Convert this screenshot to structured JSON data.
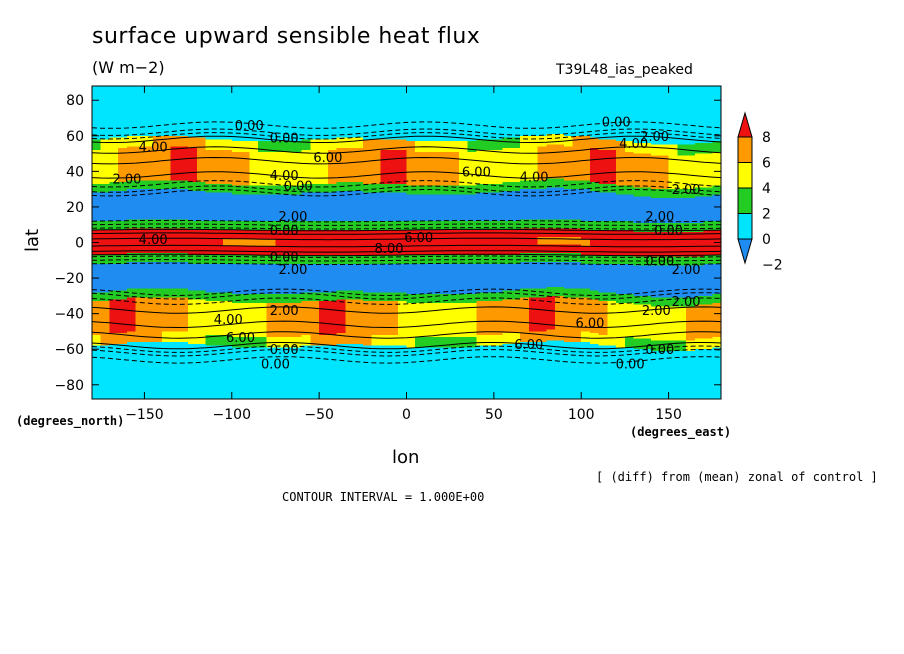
{
  "chart_data": {
    "type": "heatmap",
    "title": "surface upward sensible heat flux",
    "units": "(W m−2)",
    "experiment": "T39L48_ias_peaked",
    "xlabel": "lon",
    "ylabel": "lat",
    "x_unit_label": "(degrees_east)",
    "y_unit_label": "(degrees_north)",
    "xlim": [
      -180,
      180
    ],
    "ylim": [
      -88,
      88
    ],
    "x_ticks": [
      -150,
      -100,
      -50,
      0,
      50,
      100,
      150
    ],
    "x_tick_labels": [
      "−150",
      "−100",
      "−50",
      "0",
      "50",
      "100",
      "150"
    ],
    "y_ticks": [
      80,
      60,
      40,
      20,
      0,
      -20,
      -40,
      -60,
      -80
    ],
    "y_tick_labels": [
      "80",
      "60",
      "40",
      "20",
      "0",
      "−20",
      "−40",
      "−60",
      "−80"
    ],
    "colorbar": {
      "levels": [
        -2,
        0,
        2,
        4,
        6,
        8
      ],
      "tick_labels": [
        "−2",
        "0",
        "2",
        "4",
        "6",
        "8"
      ],
      "colors": [
        "#1e8cf0",
        "#00e5ff",
        "#22cc22",
        "#ffff00",
        "#ff9900",
        "#ee1111"
      ],
      "extend": "both"
    },
    "contour_labels": [
      {
        "text": "0.00",
        "lon": -90,
        "lat": 66
      },
      {
        "text": "0.00",
        "lon": -70,
        "lat": 59
      },
      {
        "text": "4.00",
        "lon": -145,
        "lat": 54
      },
      {
        "text": "6.00",
        "lon": -45,
        "lat": 48
      },
      {
        "text": "4.00",
        "lon": -70,
        "lat": 38
      },
      {
        "text": "2.00",
        "lon": -160,
        "lat": 36
      },
      {
        "text": "0.00",
        "lon": -62,
        "lat": 32
      },
      {
        "text": "6.00",
        "lon": 40,
        "lat": 40
      },
      {
        "text": "4.00",
        "lon": 73,
        "lat": 37
      },
      {
        "text": "0.00",
        "lon": 120,
        "lat": 68
      },
      {
        "text": "2.00",
        "lon": 142,
        "lat": 60
      },
      {
        "text": "4.00",
        "lon": 130,
        "lat": 56
      },
      {
        "text": "2.00",
        "lon": 160,
        "lat": 30
      },
      {
        "text": "2.00",
        "lon": -65,
        "lat": 15
      },
      {
        "text": "0.00",
        "lon": -70,
        "lat": 7
      },
      {
        "text": "4.00",
        "lon": -145,
        "lat": 2
      },
      {
        "text": "8.00",
        "lon": -10,
        "lat": -3
      },
      {
        "text": "6.00",
        "lon": 7,
        "lat": 3
      },
      {
        "text": "2.00",
        "lon": 145,
        "lat": 15
      },
      {
        "text": "0.00",
        "lon": 150,
        "lat": 7
      },
      {
        "text": "0.00",
        "lon": -70,
        "lat": -8
      },
      {
        "text": "2.00",
        "lon": -65,
        "lat": -15
      },
      {
        "text": "0.00",
        "lon": 145,
        "lat": -10
      },
      {
        "text": "2.00",
        "lon": 160,
        "lat": -15
      },
      {
        "text": "2.00",
        "lon": -70,
        "lat": -38
      },
      {
        "text": "4.00",
        "lon": -102,
        "lat": -43
      },
      {
        "text": "6.00",
        "lon": -95,
        "lat": -53
      },
      {
        "text": "2.00",
        "lon": 160,
        "lat": -33
      },
      {
        "text": "2.00",
        "lon": 143,
        "lat": -38
      },
      {
        "text": "6.00",
        "lon": 105,
        "lat": -45
      },
      {
        "text": "6.00",
        "lon": 70,
        "lat": -57
      },
      {
        "text": "0.00",
        "lon": -70,
        "lat": -60
      },
      {
        "text": "0.00",
        "lon": -75,
        "lat": -68
      },
      {
        "text": "0.00",
        "lon": 145,
        "lat": -60
      },
      {
        "text": "0.00",
        "lon": 128,
        "lat": -68
      }
    ]
  },
  "footer": {
    "note": "[ (diff) from (mean) zonal of control ]",
    "contour_interval": "CONTOUR INTERVAL = 1.000E+00"
  }
}
